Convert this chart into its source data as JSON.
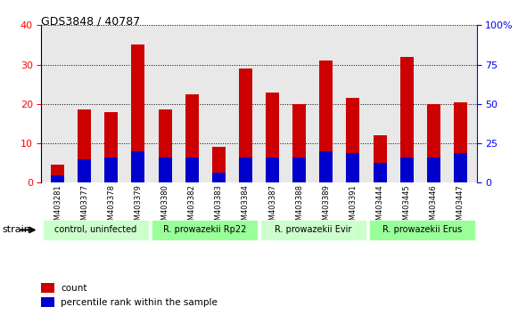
{
  "title": "GDS3848 / 40787",
  "categories": [
    "GSM403281",
    "GSM403377",
    "GSM403378",
    "GSM403379",
    "GSM403380",
    "GSM403382",
    "GSM403383",
    "GSM403384",
    "GSM403387",
    "GSM403388",
    "GSM403389",
    "GSM403391",
    "GSM403444",
    "GSM403445",
    "GSM403446",
    "GSM403447"
  ],
  "count_values": [
    4.5,
    18.5,
    18.0,
    35.0,
    18.5,
    22.5,
    9.0,
    29.0,
    23.0,
    20.0,
    31.0,
    21.5,
    12.0,
    32.0,
    20.0,
    20.5
  ],
  "percentile_values": [
    1.8,
    6.0,
    6.5,
    8.0,
    6.5,
    6.5,
    2.5,
    6.5,
    6.5,
    6.5,
    8.0,
    7.5,
    5.0,
    6.5,
    6.5,
    7.5
  ],
  "strain_groups": [
    {
      "label": "control, uninfected",
      "start": 0,
      "end": 3,
      "color": "#ccffcc"
    },
    {
      "label": "R. prowazekii Rp22",
      "start": 4,
      "end": 7,
      "color": "#99ff99"
    },
    {
      "label": "R. prowazekii Evir",
      "start": 8,
      "end": 11,
      "color": "#ccffcc"
    },
    {
      "label": "R. prowazekii Erus",
      "start": 12,
      "end": 15,
      "color": "#99ff99"
    }
  ],
  "count_color": "#cc0000",
  "percentile_color": "#0000cc",
  "bar_width": 0.5,
  "ylim_left": [
    0,
    40
  ],
  "ylim_right": [
    0,
    100
  ],
  "yticks_left": [
    0,
    10,
    20,
    30,
    40
  ],
  "yticks_right": [
    0,
    25,
    50,
    75,
    100
  ],
  "legend_count": "count",
  "legend_percentile": "percentile rank within the sample",
  "strain_label": "strain",
  "bg_color": "#ffffff",
  "plot_bg_color": "#e8e8e8",
  "grid_color": "#000000"
}
